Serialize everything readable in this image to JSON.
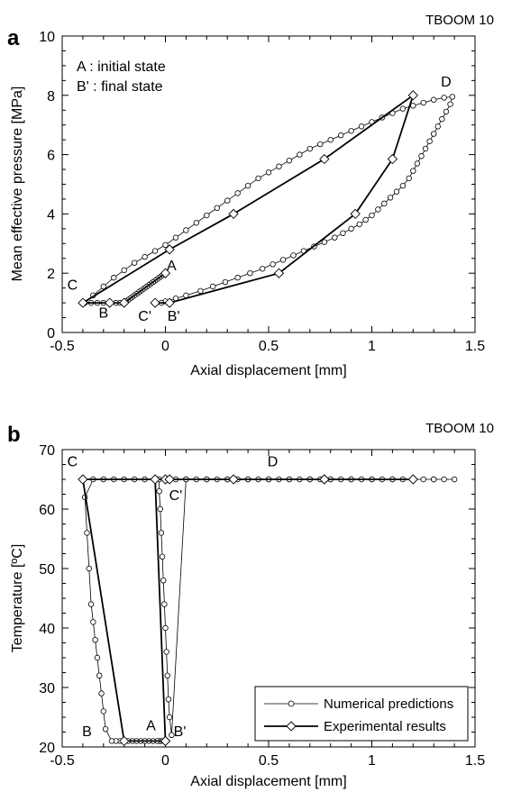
{
  "chart_data": [
    {
      "panel": "a",
      "type": "line",
      "tag": "TBOOM 10",
      "xlabel": "Axial displacement [mm]",
      "ylabel": "Mean effective pressure [MPa]",
      "xlim": [
        -0.5,
        1.5
      ],
      "ylim": [
        0,
        10
      ],
      "xticks": [
        -0.5,
        0,
        0.5,
        1,
        1.5
      ],
      "xtick_labels": [
        "-0.5",
        "0",
        "0.5",
        "1",
        "1.5"
      ],
      "yticks": [
        0,
        2,
        4,
        6,
        8,
        10
      ],
      "ytick_labels": [
        "0",
        "2",
        "4",
        "6",
        "8",
        "10"
      ],
      "notes": [
        "A : initial state",
        "B' : final state"
      ],
      "annotations": [
        {
          "text": "A",
          "x": 0.03,
          "y": 2.1
        },
        {
          "text": "B",
          "x": -0.3,
          "y": 0.5
        },
        {
          "text": "C",
          "x": -0.45,
          "y": 1.45
        },
        {
          "text": "C'",
          "x": -0.1,
          "y": 0.4
        },
        {
          "text": "B'",
          "x": 0.04,
          "y": 0.4
        },
        {
          "text": "D",
          "x": 1.36,
          "y": 8.3
        }
      ],
      "series": [
        {
          "name": "Numerical predictions",
          "marker": "circle",
          "x": [
            0.0,
            -0.01,
            -0.02,
            -0.03,
            -0.04,
            -0.05,
            -0.06,
            -0.07,
            -0.08,
            -0.09,
            -0.1,
            -0.11,
            -0.12,
            -0.13,
            -0.14,
            -0.15,
            -0.16,
            -0.17,
            -0.18,
            -0.19,
            -0.2,
            -0.22,
            -0.24,
            -0.27,
            -0.3,
            -0.33,
            -0.36,
            -0.39,
            -0.35,
            -0.3,
            -0.25,
            -0.2,
            -0.15,
            -0.1,
            -0.05,
            0.0,
            0.05,
            0.1,
            0.15,
            0.2,
            0.25,
            0.3,
            0.35,
            0.4,
            0.45,
            0.5,
            0.55,
            0.6,
            0.65,
            0.7,
            0.75,
            0.8,
            0.85,
            0.9,
            0.95,
            1.0,
            1.05,
            1.1,
            1.15,
            1.2,
            1.25,
            1.3,
            1.35,
            1.39,
            1.38,
            1.36,
            1.34,
            1.32,
            1.3,
            1.28,
            1.26,
            1.24,
            1.22,
            1.2,
            1.18,
            1.15,
            1.12,
            1.09,
            1.06,
            1.03,
            1.0,
            0.97,
            0.94,
            0.9,
            0.86,
            0.82,
            0.77,
            0.72,
            0.67,
            0.62,
            0.57,
            0.52,
            0.47,
            0.41,
            0.35,
            0.29,
            0.23,
            0.17,
            0.1,
            0.05,
            0.0,
            -0.02
          ],
          "y": [
            2.0,
            1.95,
            1.9,
            1.85,
            1.8,
            1.75,
            1.7,
            1.65,
            1.6,
            1.55,
            1.5,
            1.45,
            1.4,
            1.35,
            1.3,
            1.25,
            1.2,
            1.15,
            1.1,
            1.05,
            1.0,
            1.0,
            1.0,
            1.0,
            1.0,
            1.0,
            1.0,
            1.0,
            1.25,
            1.55,
            1.85,
            2.1,
            2.35,
            2.55,
            2.75,
            2.95,
            3.2,
            3.45,
            3.7,
            3.95,
            4.2,
            4.45,
            4.7,
            4.95,
            5.2,
            5.4,
            5.6,
            5.8,
            6.0,
            6.2,
            6.35,
            6.5,
            6.65,
            6.8,
            6.95,
            7.1,
            7.25,
            7.4,
            7.55,
            7.65,
            7.75,
            7.85,
            7.92,
            7.95,
            7.7,
            7.45,
            7.2,
            6.95,
            6.7,
            6.45,
            6.2,
            5.95,
            5.7,
            5.45,
            5.2,
            4.95,
            4.75,
            4.55,
            4.35,
            4.15,
            3.95,
            3.8,
            3.65,
            3.5,
            3.35,
            3.2,
            3.05,
            2.9,
            2.75,
            2.6,
            2.45,
            2.3,
            2.15,
            2.0,
            1.85,
            1.7,
            1.55,
            1.4,
            1.25,
            1.15,
            1.05,
            1.0
          ]
        },
        {
          "name": "Experimental results",
          "marker": "diamond",
          "x": [
            0.0,
            -0.2,
            -0.27,
            -0.4,
            0.02,
            0.33,
            0.77,
            1.2,
            1.1,
            0.92,
            0.55,
            0.02,
            -0.05
          ],
          "y": [
            2.0,
            1.0,
            1.0,
            1.0,
            2.8,
            4.0,
            5.85,
            8.0,
            5.85,
            4.0,
            2.0,
            1.0,
            1.0
          ]
        }
      ]
    },
    {
      "panel": "b",
      "type": "line",
      "tag": "TBOOM 10",
      "xlabel": "Axial displacement [mm]",
      "ylabel": "Temperature [ºC]",
      "xlim": [
        -0.5,
        1.5
      ],
      "ylim": [
        20,
        70
      ],
      "xticks": [
        -0.5,
        0,
        0.5,
        1,
        1.5
      ],
      "xtick_labels": [
        "-0.5",
        "0",
        "0.5",
        "1",
        "1.5"
      ],
      "yticks": [
        20,
        30,
        40,
        50,
        60,
        70
      ],
      "ytick_labels": [
        "20",
        "30",
        "40",
        "50",
        "60",
        "70"
      ],
      "legend": {
        "position": "bottom-right",
        "entries": [
          "Numerical predictions",
          "Experimental results"
        ]
      },
      "annotations": [
        {
          "text": "C",
          "x": -0.45,
          "y": 67.2
        },
        {
          "text": "D",
          "x": 0.52,
          "y": 67.2
        },
        {
          "text": "C'",
          "x": 0.05,
          "y": 61.5
        },
        {
          "text": "B",
          "x": -0.38,
          "y": 21.8
        },
        {
          "text": "A",
          "x": -0.07,
          "y": 22.8
        },
        {
          "text": "B'",
          "x": 0.07,
          "y": 21.8
        }
      ],
      "series": [
        {
          "name": "Numerical predictions",
          "marker": "circle",
          "x": [
            -0.02,
            -0.03,
            -0.04,
            -0.06,
            -0.08,
            -0.1,
            -0.12,
            -0.14,
            -0.16,
            -0.18,
            -0.2,
            -0.22,
            -0.24,
            -0.26,
            -0.29,
            -0.3,
            -0.31,
            -0.32,
            -0.33,
            -0.34,
            -0.35,
            -0.36,
            -0.37,
            -0.38,
            -0.39,
            -0.35,
            -0.3,
            -0.25,
            -0.2,
            -0.15,
            -0.1,
            -0.05,
            0.0,
            0.05,
            0.1,
            0.15,
            0.2,
            0.25,
            0.3,
            0.35,
            0.4,
            0.45,
            0.5,
            0.55,
            0.6,
            0.65,
            0.7,
            0.75,
            0.8,
            0.85,
            0.9,
            0.95,
            1.0,
            1.05,
            1.1,
            1.15,
            1.2,
            1.25,
            1.3,
            1.35,
            1.4,
            1.3,
            1.2,
            1.1,
            1.0,
            0.9,
            0.8,
            0.7,
            0.6,
            0.5,
            0.4,
            0.3,
            0.2,
            0.1,
            0.03,
            0.02,
            0.015,
            0.01,
            0.005,
            0.0,
            -0.005,
            -0.01,
            -0.015,
            -0.02,
            -0.025,
            -0.03,
            -0.03
          ],
          "y": [
            21,
            21,
            21,
            21,
            21,
            21,
            21,
            21,
            21,
            21,
            21,
            21,
            21,
            21,
            23,
            26,
            29,
            32,
            35,
            38,
            41,
            44,
            50,
            56,
            62,
            65,
            65,
            65,
            65,
            65,
            65,
            65,
            65,
            65,
            65,
            65,
            65,
            65,
            65,
            65,
            65,
            65,
            65,
            65,
            65,
            65,
            65,
            65,
            65,
            65,
            65,
            65,
            65,
            65,
            65,
            65,
            65,
            65,
            65,
            65,
            65,
            65,
            65,
            65,
            65,
            65,
            65,
            65,
            65,
            65,
            65,
            65,
            65,
            65,
            22,
            25,
            28,
            32,
            36,
            40,
            44,
            48,
            52,
            56,
            60,
            63,
            65
          ]
        },
        {
          "name": "Experimental results",
          "marker": "diamond",
          "x": [
            0.0,
            -0.2,
            -0.4,
            0.0,
            0.33,
            0.77,
            1.2,
            0.77,
            0.02,
            -0.05,
            0.0
          ],
          "y": [
            21,
            21,
            65,
            65,
            65,
            65,
            65,
            65,
            65,
            65,
            21
          ]
        }
      ]
    }
  ]
}
